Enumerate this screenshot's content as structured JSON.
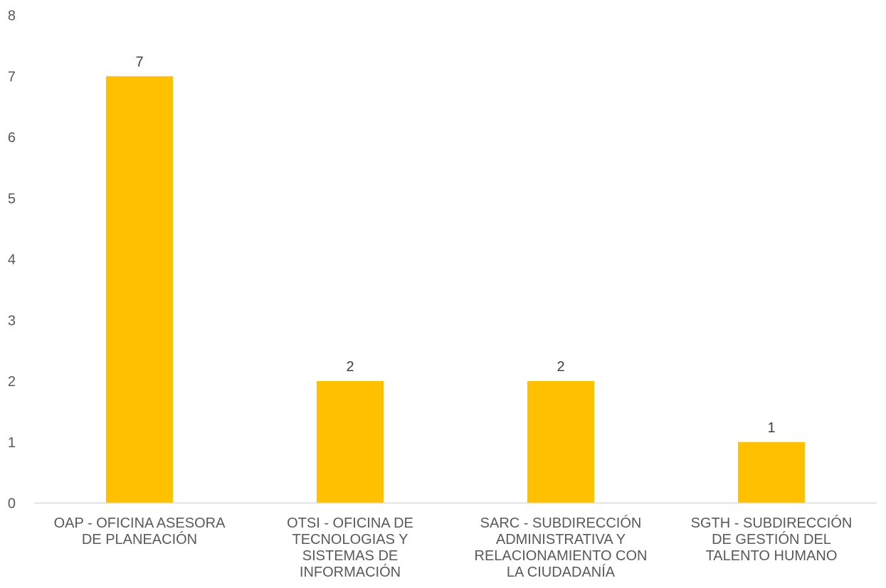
{
  "chart_data": {
    "type": "bar",
    "categories": [
      [
        "OAP - OFICINA ASESORA",
        "DE PLANEACIÓN"
      ],
      [
        "OTSI - OFICINA DE",
        "TECNOLOGIAS Y",
        "SISTEMAS DE",
        "INFORMACIÓN"
      ],
      [
        "SARC - SUBDIRECCIÓN",
        "ADMINISTRATIVA Y",
        "RELACIONAMIENTO CON",
        "LA CIUDADANÍA"
      ],
      [
        "SGTH - SUBDIRECCIÓN",
        "DE GESTIÓN DEL",
        "TALENTO HUMANO"
      ]
    ],
    "values": [
      7,
      2,
      2,
      1
    ],
    "data_labels": [
      "7",
      "2",
      "2",
      "1"
    ],
    "ylim": [
      0,
      8
    ],
    "yticks": [
      "0",
      "1",
      "2",
      "3",
      "4",
      "5",
      "6",
      "7",
      "8"
    ],
    "title": "",
    "xlabel": "",
    "ylabel": "",
    "grid": false,
    "legend": "none",
    "bar_color": "#FFC000",
    "axis_color": "#D9D9D9"
  }
}
